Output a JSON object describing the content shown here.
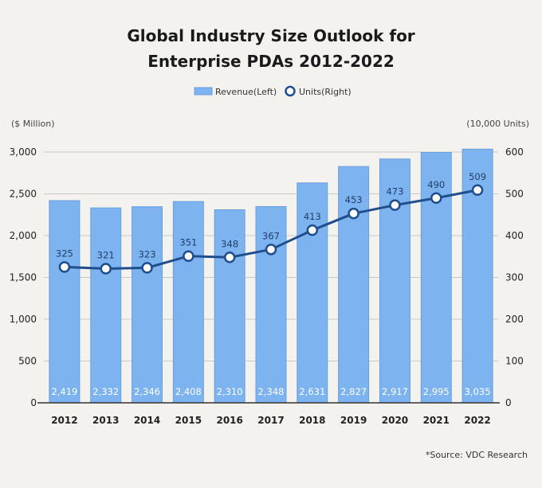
{
  "title_lines": [
    "Global Industry Size Outlook for",
    "Enterprise PDAs 2012-2022"
  ],
  "legend": {
    "revenue": "Revenue(Left)",
    "units": "Units(Right)"
  },
  "left_unit": "($ Million)",
  "right_unit": "(10,000 Units)",
  "source": "*Source: VDC Research",
  "colors": {
    "bar": "#7db3ee",
    "bar_stroke": "#6a9fdc",
    "line": "#1f4e8c",
    "marker_fill": "#ffffff",
    "grid": "#c9c9c9",
    "axis": "#333333"
  },
  "chart_data": {
    "type": "bar",
    "categories": [
      "2012",
      "2013",
      "2014",
      "2015",
      "2016",
      "2017",
      "2018",
      "2019",
      "2020",
      "2021",
      "2022"
    ],
    "series": [
      {
        "name": "Revenue(Left)",
        "type": "bar",
        "axis": "left",
        "values": [
          2419,
          2332,
          2346,
          2408,
          2310,
          2348,
          2631,
          2827,
          2917,
          2995,
          3035
        ],
        "labels": [
          "2,419",
          "2,332",
          "2,346",
          "2,408",
          "2,310",
          "2,348",
          "2,631",
          "2,827",
          "2,917",
          "2,995",
          "3,035"
        ]
      },
      {
        "name": "Units(Right)",
        "type": "line",
        "axis": "right",
        "values": [
          325,
          321,
          323,
          351,
          348,
          367,
          413,
          453,
          473,
          490,
          509
        ],
        "labels": [
          "325",
          "321",
          "323",
          "351",
          "348",
          "367",
          "413",
          "453",
          "473",
          "490",
          "509"
        ]
      }
    ],
    "left_axis": {
      "ylim": [
        0,
        3000
      ],
      "ticks": [
        0,
        500,
        1000,
        1500,
        2000,
        2500,
        3000
      ],
      "tick_labels": [
        "0",
        "500",
        "1,000",
        "1,500",
        "2,000",
        "2,500",
        "3,000"
      ]
    },
    "right_axis": {
      "ylim": [
        0,
        600
      ],
      "ticks": [
        0,
        100,
        200,
        300,
        400,
        500,
        600
      ],
      "tick_labels": [
        "0",
        "100",
        "200",
        "300",
        "400",
        "500",
        "600"
      ]
    },
    "grid": true,
    "legend_position": "top-center"
  }
}
